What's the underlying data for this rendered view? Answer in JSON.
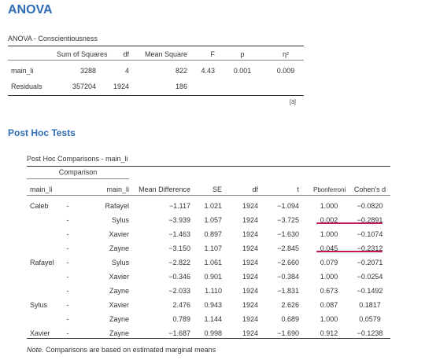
{
  "anova": {
    "heading": "ANOVA",
    "caption": "ANOVA - Conscientiousness",
    "columns": [
      "",
      "Sum of Squares",
      "df",
      "Mean Square",
      "F",
      "p",
      "η²"
    ],
    "rows": [
      [
        "main_li",
        "3288",
        "4",
        "822",
        "4.43",
        "0.001",
        "0.009"
      ],
      [
        "Residuals",
        "357204",
        "1924",
        "186",
        "",
        "",
        ""
      ]
    ],
    "footnote": "[3]"
  },
  "posthoc": {
    "heading": "Post Hoc Tests",
    "caption": "Post Hoc Comparisons - main_li",
    "group_header": "Comparison",
    "columns": [
      "main_li",
      "",
      "main_li",
      "Mean Difference",
      "SE",
      "df",
      "t",
      "Pbonferroni",
      "Cohen's d"
    ],
    "rows": [
      [
        "Caleb",
        "-",
        "Rafayel",
        "−1.117",
        "1.021",
        "1924",
        "−1.094",
        "1.000",
        "−0.0820"
      ],
      [
        "",
        "-",
        "Sylus",
        "−3.939",
        "1.057",
        "1924",
        "−3.725",
        "0.002",
        "−0.2891"
      ],
      [
        "",
        "-",
        "Xavier",
        "−1.463",
        "0.897",
        "1924",
        "−1.630",
        "1.000",
        "−0.1074"
      ],
      [
        "",
        "-",
        "Zayne",
        "−3.150",
        "1.107",
        "1924",
        "−2.845",
        "0.045",
        "−0.2312"
      ],
      [
        "Rafayel",
        "-",
        "Sylus",
        "−2.822",
        "1.061",
        "1924",
        "−2.660",
        "0.079",
        "−0.2071"
      ],
      [
        "",
        "-",
        "Xavier",
        "−0.346",
        "0.901",
        "1924",
        "−0.384",
        "1.000",
        "−0.0254"
      ],
      [
        "",
        "-",
        "Zayne",
        "−2.033",
        "1.110",
        "1924",
        "−1.831",
        "0.673",
        "−0.1492"
      ],
      [
        "Sylus",
        "-",
        "Xavier",
        "2.476",
        "0.943",
        "1924",
        "2.626",
        "0.087",
        "0.1817"
      ],
      [
        "",
        "-",
        "Zayne",
        "0.789",
        "1.144",
        "1924",
        "0.689",
        "1.000",
        "0.0579"
      ],
      [
        "Xavier",
        "-",
        "Zayne",
        "−1.687",
        "0.998",
        "1924",
        "−1.690",
        "0.912",
        "−0.1238"
      ]
    ],
    "note_label": "Note.",
    "note_text": "Comparisons are based on estimated marginal means"
  },
  "colors": {
    "heading": "#2f6cb5",
    "highlight": "#c1185b"
  }
}
